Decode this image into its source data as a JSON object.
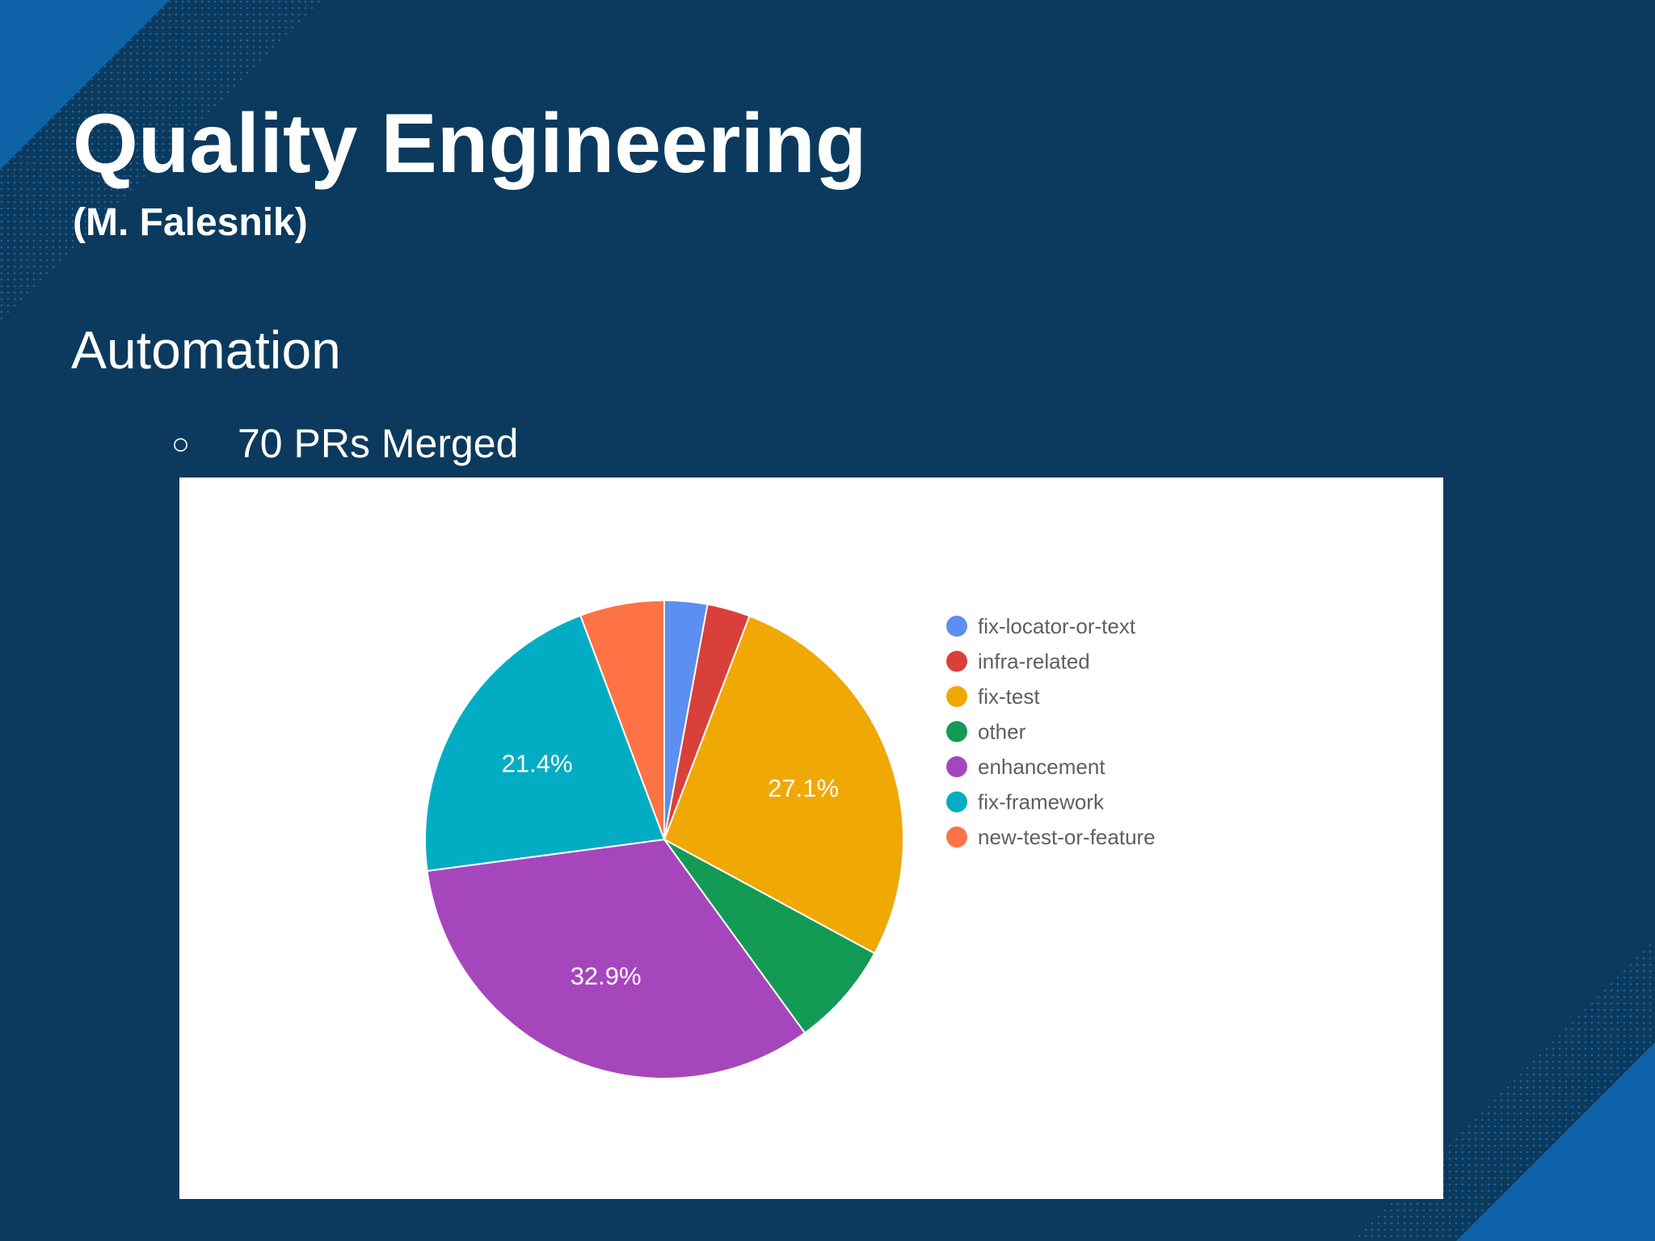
{
  "slide": {
    "title": "Quality Engineering",
    "subtitle": "(M. Falesnik)",
    "section": "Automation",
    "bullet": "70 PRs Merged",
    "bullet_symbol": "○",
    "background_color": "#0b3a5e",
    "accent_color": "#0e63a8"
  },
  "chart_data": {
    "type": "pie",
    "title": "",
    "start_angle_deg": 0,
    "direction": "clockwise",
    "legend_position": "right",
    "slices": [
      {
        "name": "fix-locator-or-text",
        "value": 2.9,
        "color": "#5b8ff0",
        "label": ""
      },
      {
        "name": "infra-related",
        "value": 2.9,
        "color": "#d9403a",
        "label": ""
      },
      {
        "name": "fix-test",
        "value": 27.1,
        "color": "#f0a804",
        "label": "27.1%"
      },
      {
        "name": "other",
        "value": 7.1,
        "color": "#139a55",
        "label": ""
      },
      {
        "name": "enhancement",
        "value": 32.9,
        "color": "#a646bd",
        "label": "32.9%"
      },
      {
        "name": "fix-framework",
        "value": 21.4,
        "color": "#02adc3",
        "label": "21.4%"
      },
      {
        "name": "new-test-or-feature",
        "value": 5.7,
        "color": "#fd7345",
        "label": ""
      }
    ]
  }
}
